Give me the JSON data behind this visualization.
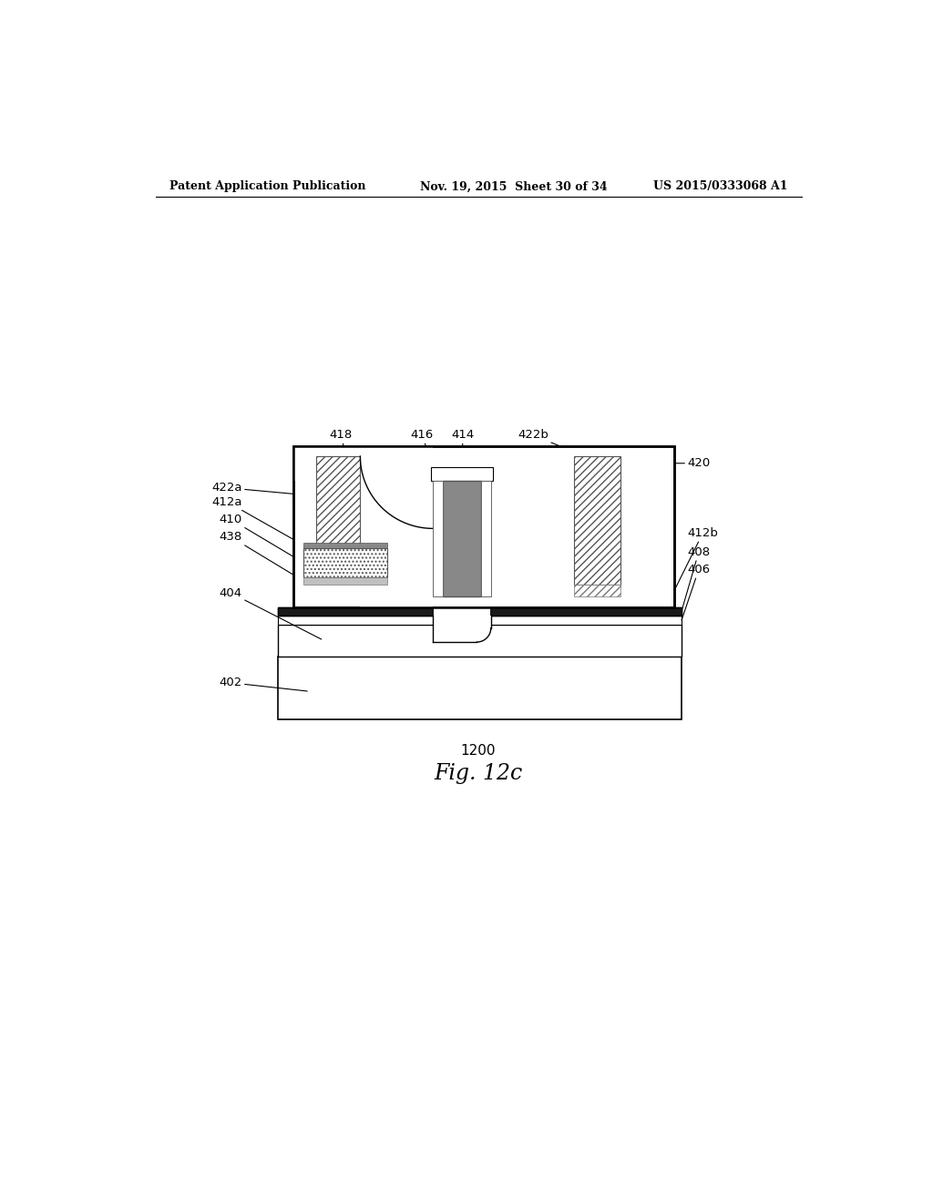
{
  "header_left": "Patent Application Publication",
  "header_mid": "Nov. 19, 2015  Sheet 30 of 34",
  "header_right": "US 2015/0333068 A1",
  "fig_number": "1200",
  "fig_title": "Fig. 12c",
  "bg_color": "#ffffff"
}
